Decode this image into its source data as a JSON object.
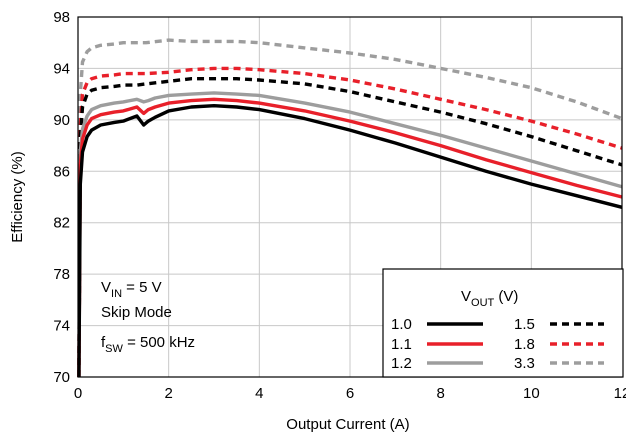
{
  "chart_data": {
    "type": "line",
    "xlabel": "Output Current (A)",
    "ylabel": "Efficiency (%)",
    "xlim": [
      0,
      12
    ],
    "ylim": [
      70,
      98
    ],
    "xticks": [
      "0",
      "2",
      "4",
      "6",
      "8",
      "10",
      "12"
    ],
    "yticks": [
      "70",
      "74",
      "78",
      "82",
      "86",
      "90",
      "94",
      "98"
    ],
    "grid": true,
    "legend_title": "V_OUT (V)",
    "legend_position": "bottom-right",
    "annotation": {
      "vin": "V_IN = 5 V",
      "mode": "Skip Mode",
      "fsw": "f_SW = 500 kHz"
    },
    "series": [
      {
        "name": "1.0",
        "color": "#000000",
        "dash": "solid",
        "x": [
          0.02,
          0.05,
          0.1,
          0.2,
          0.3,
          0.5,
          0.8,
          1.0,
          1.3,
          1.45,
          1.55,
          1.7,
          2.0,
          2.5,
          3.0,
          3.5,
          4.0,
          5.0,
          6.0,
          7.0,
          8.0,
          9.0,
          10.0,
          11.0,
          12.0
        ],
        "y": [
          70,
          85,
          87.5,
          88.7,
          89.2,
          89.6,
          89.8,
          89.9,
          90.3,
          89.6,
          89.9,
          90.2,
          90.7,
          91.0,
          91.1,
          91.0,
          90.8,
          90.1,
          89.2,
          88.2,
          87.1,
          86.0,
          85.0,
          84.1,
          83.2
        ]
      },
      {
        "name": "1.1",
        "color": "#e8202a",
        "dash": "solid",
        "x": [
          0.02,
          0.05,
          0.1,
          0.2,
          0.3,
          0.5,
          0.8,
          1.0,
          1.3,
          1.45,
          1.55,
          1.7,
          2.0,
          2.5,
          3.0,
          3.5,
          4.0,
          5.0,
          6.0,
          7.0,
          8.0,
          9.0,
          10.0,
          11.0,
          12.0
        ],
        "y": [
          70,
          86.5,
          88.5,
          89.6,
          90.1,
          90.4,
          90.6,
          90.7,
          91.0,
          90.5,
          90.8,
          91.0,
          91.3,
          91.5,
          91.6,
          91.5,
          91.3,
          90.7,
          89.9,
          89.0,
          88.0,
          86.9,
          85.9,
          84.9,
          84.0
        ]
      },
      {
        "name": "1.2",
        "color": "#9d9d9d",
        "dash": "solid",
        "x": [
          0.02,
          0.05,
          0.1,
          0.2,
          0.3,
          0.5,
          0.8,
          1.0,
          1.3,
          1.45,
          1.55,
          1.7,
          2.0,
          2.5,
          3.0,
          3.5,
          4.0,
          5.0,
          6.0,
          7.0,
          8.0,
          9.0,
          10.0,
          11.0,
          12.0
        ],
        "y": [
          70,
          87.5,
          89.3,
          90.3,
          90.8,
          91.1,
          91.3,
          91.4,
          91.6,
          91.4,
          91.5,
          91.7,
          91.9,
          92.0,
          92.1,
          92.0,
          91.9,
          91.3,
          90.6,
          89.7,
          88.8,
          87.8,
          86.8,
          85.8,
          84.8
        ]
      },
      {
        "name": "1.5",
        "color": "#000000",
        "dash": "dashed",
        "x": [
          0.02,
          0.05,
          0.1,
          0.2,
          0.3,
          0.5,
          0.8,
          1.0,
          1.3,
          1.5,
          2.0,
          2.5,
          3.0,
          3.5,
          4.0,
          5.0,
          6.0,
          7.0,
          8.0,
          9.0,
          10.0,
          11.0,
          12.0
        ],
        "y": [
          70,
          88.5,
          91.0,
          92.0,
          92.3,
          92.5,
          92.6,
          92.7,
          92.7,
          92.8,
          93.0,
          93.2,
          93.2,
          93.2,
          93.1,
          92.8,
          92.2,
          91.4,
          90.6,
          89.7,
          88.7,
          87.6,
          86.5
        ]
      },
      {
        "name": "1.8",
        "color": "#e8202a",
        "dash": "dashed",
        "x": [
          0.02,
          0.05,
          0.1,
          0.2,
          0.3,
          0.5,
          0.8,
          1.0,
          1.3,
          1.5,
          2.0,
          2.5,
          3.0,
          3.5,
          4.0,
          5.0,
          6.0,
          7.0,
          8.0,
          9.0,
          10.0,
          11.0,
          12.0
        ],
        "y": [
          70,
          89.5,
          92.0,
          92.9,
          93.2,
          93.4,
          93.5,
          93.6,
          93.6,
          93.6,
          93.7,
          93.9,
          94.0,
          94.0,
          93.9,
          93.6,
          93.1,
          92.4,
          91.6,
          90.8,
          89.9,
          88.9,
          87.8
        ]
      },
      {
        "name": "3.3",
        "color": "#9d9d9d",
        "dash": "dashed",
        "x": [
          0.02,
          0.05,
          0.1,
          0.2,
          0.3,
          0.5,
          0.8,
          1.0,
          1.3,
          1.5,
          2.0,
          2.5,
          3.0,
          3.5,
          4.0,
          5.0,
          6.0,
          7.0,
          8.0,
          9.0,
          10.0,
          11.0,
          12.0
        ],
        "y": [
          70,
          92.0,
          94.5,
          95.3,
          95.6,
          95.8,
          95.9,
          96.0,
          96.0,
          96.0,
          96.2,
          96.1,
          96.1,
          96.1,
          96.0,
          95.6,
          95.2,
          94.7,
          94.0,
          93.3,
          92.5,
          91.4,
          90.1
        ]
      }
    ]
  }
}
